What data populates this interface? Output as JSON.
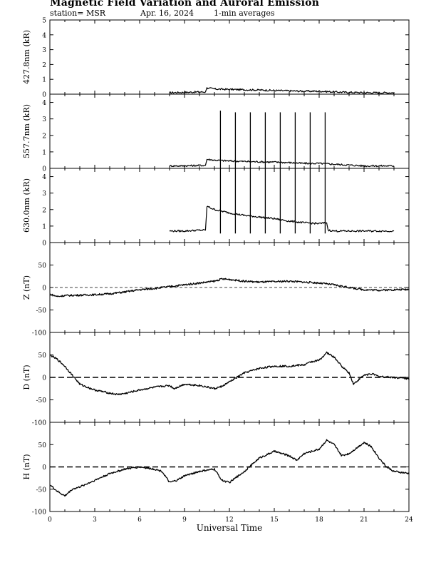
{
  "header": {
    "title": "Magnetic Field Variation and Auroral Emission",
    "station": "station= MSR",
    "date": "Apr. 16, 2024",
    "averaging": "1-min averages"
  },
  "chart_data": {
    "type": "line",
    "xlabel": "Universal Time",
    "xlim": [
      0,
      24
    ],
    "xticks": [
      0,
      3,
      6,
      9,
      12,
      15,
      18,
      21,
      24
    ],
    "panels": [
      {
        "id": "p4278",
        "ylabel": "427.8nm (kR)",
        "ylim": [
          0,
          5
        ],
        "yticks": [
          0,
          1,
          2,
          3,
          4,
          5
        ],
        "zero_line": false,
        "x": [
          8.0,
          9.0,
          10.0,
          10.4,
          10.5,
          11.0,
          12.0,
          13.0,
          14.0,
          15.0,
          16.0,
          17.0,
          18.0,
          19.0,
          20.0,
          21.0,
          22.0,
          23.0
        ],
        "y": [
          0.1,
          0.12,
          0.15,
          0.15,
          0.42,
          0.35,
          0.32,
          0.3,
          0.28,
          0.25,
          0.22,
          0.2,
          0.2,
          0.15,
          0.12,
          0.1,
          0.1,
          0.1
        ],
        "spikes": []
      },
      {
        "id": "p5577",
        "ylabel": "557.7nm (kR)",
        "ylim": [
          0,
          4.5
        ],
        "yticks": [
          0,
          1,
          2,
          3,
          4
        ],
        "zero_line": false,
        "x": [
          8.0,
          9.0,
          10.0,
          10.4,
          10.5,
          11.0,
          12.0,
          13.0,
          14.0,
          15.0,
          16.0,
          17.0,
          18.0,
          19.0,
          20.0,
          21.0,
          22.0,
          23.0
        ],
        "y": [
          0.15,
          0.15,
          0.18,
          0.18,
          0.55,
          0.5,
          0.45,
          0.42,
          0.4,
          0.38,
          0.35,
          0.3,
          0.3,
          0.25,
          0.2,
          0.15,
          0.15,
          0.15
        ],
        "spikes": [
          {
            "x": 11.4,
            "peak": 3.5
          },
          {
            "x": 12.4,
            "peak": 3.4
          },
          {
            "x": 13.4,
            "peak": 3.4
          },
          {
            "x": 14.4,
            "peak": 3.4
          },
          {
            "x": 15.4,
            "peak": 3.4
          },
          {
            "x": 16.4,
            "peak": 3.4
          },
          {
            "x": 17.4,
            "peak": 3.4
          },
          {
            "x": 18.4,
            "peak": 3.4
          }
        ]
      },
      {
        "id": "p6300",
        "ylabel": "630.0nm (kR)",
        "ylim": [
          0,
          4.5
        ],
        "yticks": [
          0,
          1,
          2,
          3,
          4
        ],
        "zero_line": false,
        "x": [
          8.0,
          9.0,
          10.0,
          10.4,
          10.5,
          11.0,
          12.0,
          13.0,
          14.0,
          15.0,
          16.0,
          17.0,
          18.0,
          18.5,
          18.6,
          19.0,
          20.0,
          21.0,
          22.0,
          23.0
        ],
        "y": [
          0.7,
          0.7,
          0.75,
          0.75,
          2.2,
          2.0,
          1.8,
          1.65,
          1.55,
          1.45,
          1.3,
          1.2,
          1.15,
          1.2,
          0.75,
          0.7,
          0.7,
          0.7,
          0.7,
          0.7
        ],
        "spikes": [
          {
            "x": 11.4,
            "peak": 4.5,
            "low": 0.55
          },
          {
            "x": 12.4,
            "peak": 4.5,
            "low": 0.55
          },
          {
            "x": 13.4,
            "peak": 4.5,
            "low": 0.55
          },
          {
            "x": 14.4,
            "peak": 4.5,
            "low": 0.55
          },
          {
            "x": 15.4,
            "peak": 4.5,
            "low": 0.55
          },
          {
            "x": 16.4,
            "peak": 4.5,
            "low": 0.55
          },
          {
            "x": 17.4,
            "peak": 4.5,
            "low": 0.55
          },
          {
            "x": 18.4,
            "peak": 4.5,
            "low": 0.55
          }
        ]
      },
      {
        "id": "pZ",
        "ylabel": "Z (nT)",
        "ylim": [
          -100,
          100
        ],
        "yticks": [
          -100,
          -50,
          0,
          50
        ],
        "zero_line": true,
        "zero_dash": "4,3",
        "x": [
          0,
          0.5,
          1,
          2,
          3,
          4,
          5,
          6,
          7,
          8,
          9,
          10,
          11,
          11.5,
          12,
          13,
          14,
          15,
          16,
          17,
          18,
          19,
          20,
          21,
          22,
          23,
          24
        ],
        "y": [
          -15,
          -20,
          -18,
          -17,
          -16,
          -14,
          -10,
          -5,
          -2,
          2,
          6,
          10,
          14,
          19,
          18,
          14,
          12,
          13,
          14,
          12,
          10,
          6,
          0,
          -5,
          -6,
          -5,
          -4
        ]
      },
      {
        "id": "pD",
        "ylabel": "D (nT)",
        "ylim": [
          -100,
          100
        ],
        "yticks": [
          -100,
          -50,
          0,
          50
        ],
        "zero_line": true,
        "zero_dash": "8,4",
        "x": [
          0,
          0.5,
          1,
          1.5,
          2,
          2.5,
          3,
          4,
          4.5,
          5,
          6,
          7,
          8,
          8.3,
          9,
          10,
          11,
          11.5,
          12,
          13,
          14,
          15,
          16,
          17,
          17.5,
          18,
          18.5,
          19,
          19.5,
          20,
          20.3,
          21,
          21.5,
          22,
          23,
          24
        ],
        "y": [
          50,
          40,
          25,
          5,
          -15,
          -22,
          -28,
          -35,
          -38,
          -36,
          -28,
          -22,
          -18,
          -25,
          -15,
          -18,
          -25,
          -20,
          -10,
          10,
          20,
          25,
          25,
          28,
          35,
          38,
          55,
          45,
          25,
          10,
          -15,
          5,
          8,
          2,
          0,
          -3
        ]
      },
      {
        "id": "pH",
        "ylabel": "H (nT)",
        "ylim": [
          -100,
          100
        ],
        "yticks": [
          -100,
          -50,
          0,
          50
        ],
        "zero_line": true,
        "zero_dash": "8,4",
        "x": [
          0,
          0.5,
          1,
          1.5,
          2,
          3,
          4,
          5,
          6,
          7,
          7.5,
          8,
          8.5,
          9,
          10,
          11,
          11.5,
          12,
          13,
          14,
          15,
          16,
          16.5,
          17,
          18,
          18.5,
          19,
          19.5,
          20,
          21,
          21.5,
          22,
          22.5,
          23,
          24
        ],
        "y": [
          -40,
          -55,
          -65,
          -50,
          -45,
          -30,
          -15,
          -5,
          0,
          -5,
          -10,
          -35,
          -30,
          -20,
          -10,
          -5,
          -30,
          -35,
          -10,
          20,
          35,
          25,
          15,
          30,
          40,
          60,
          50,
          25,
          30,
          55,
          45,
          20,
          0,
          -10,
          -15
        ]
      }
    ]
  }
}
